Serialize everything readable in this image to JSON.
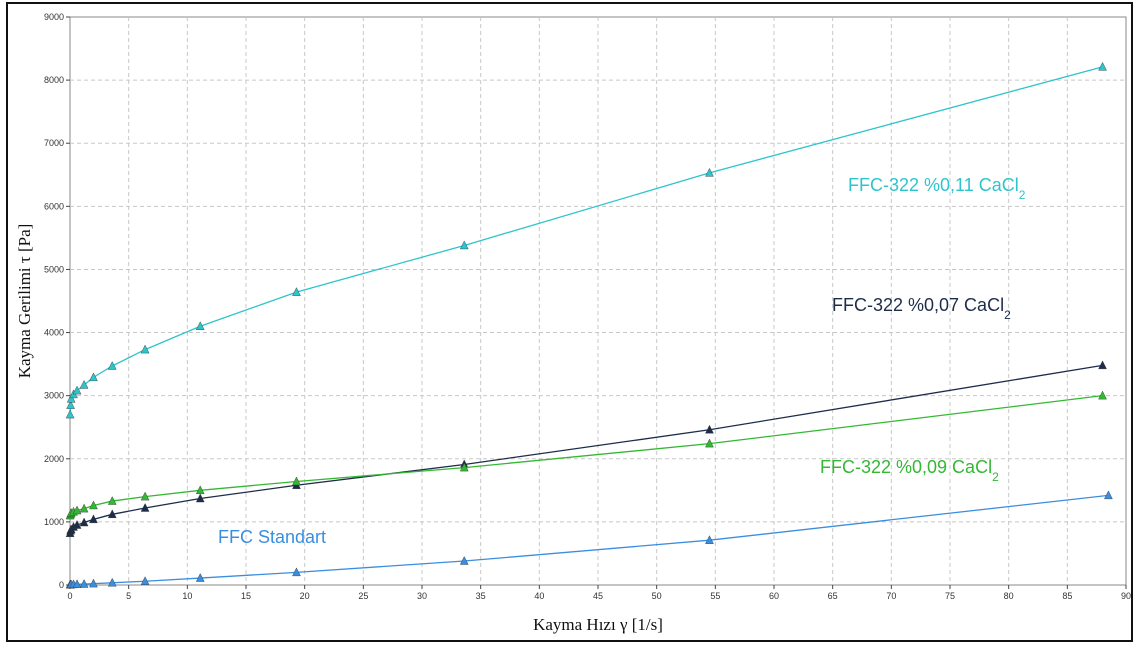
{
  "chart_data": {
    "type": "line",
    "xlabel": "Kayma Hızı γ [1/s]",
    "ylabel": "Kayma Gerilimi τ [Pa]",
    "xlim": [
      0,
      90
    ],
    "ylim": [
      0,
      9000
    ],
    "x_ticks": [
      0,
      5,
      10,
      15,
      20,
      25,
      30,
      35,
      40,
      45,
      50,
      55,
      60,
      65,
      70,
      75,
      80,
      85,
      90
    ],
    "y_ticks": [
      0,
      1000,
      2000,
      3000,
      4000,
      5000,
      6000,
      7000,
      8000,
      9000
    ],
    "grid": true,
    "series": [
      {
        "label_main": "FFC-322 %0,11 CaCl",
        "label_sub": "2",
        "color": "#2ec4cc",
        "x": [
          0.01,
          0.05,
          0.1,
          0.3,
          0.6,
          1.2,
          2.0,
          3.6,
          6.4,
          11.1,
          19.3,
          33.6,
          54.5,
          88.0
        ],
        "y": [
          2700,
          2850,
          2950,
          3020,
          3080,
          3170,
          3290,
          3470,
          3730,
          4100,
          4640,
          5380,
          6530,
          8210
        ]
      },
      {
        "label_main": "FFC-322 %0,07 CaCl",
        "label_sub": "2",
        "color": "#1c2d4a",
        "x": [
          0.01,
          0.05,
          0.1,
          0.3,
          0.6,
          1.2,
          2.0,
          3.6,
          6.4,
          11.1,
          19.3,
          33.6,
          54.5,
          88.0
        ],
        "y": [
          820,
          860,
          880,
          920,
          950,
          990,
          1040,
          1120,
          1220,
          1370,
          1580,
          1910,
          2460,
          3480
        ]
      },
      {
        "label_main": "FFC-322 %0,09 CaCl",
        "label_sub": "2",
        "color": "#33b833",
        "x": [
          0.01,
          0.05,
          0.1,
          0.3,
          0.6,
          1.2,
          2.0,
          3.6,
          6.4,
          11.1,
          19.3,
          33.6,
          54.5,
          88.0
        ],
        "y": [
          1100,
          1120,
          1140,
          1160,
          1180,
          1210,
          1260,
          1330,
          1400,
          1500,
          1640,
          1860,
          2240,
          3000
        ]
      },
      {
        "label_main": "FFC Standart",
        "label_sub": "",
        "color": "#3a8ee0",
        "x": [
          0.01,
          0.05,
          0.1,
          0.3,
          0.6,
          1.2,
          2.0,
          3.6,
          6.4,
          11.1,
          19.3,
          33.6,
          54.5,
          88.5
        ],
        "y": [
          5,
          6,
          8,
          10,
          12,
          15,
          22,
          35,
          60,
          110,
          200,
          380,
          710,
          1420
        ]
      }
    ]
  }
}
